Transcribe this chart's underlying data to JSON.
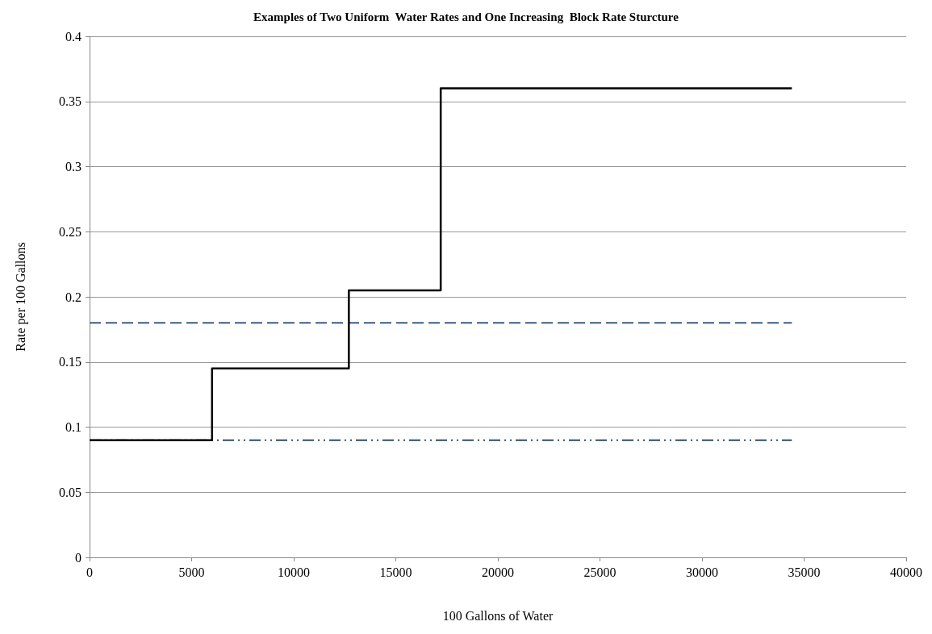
{
  "chart_data": {
    "type": "line",
    "title": "Examples of Two Uniform  Water Rates and One Increasing  Block Rate Sturcture",
    "xlabel": "100 Gallons of Water",
    "ylabel": "Rate per 100 Gallons",
    "xlim": [
      0,
      40000
    ],
    "xticks": [
      0,
      5000,
      10000,
      15000,
      20000,
      25000,
      30000,
      35000,
      40000
    ],
    "ylim": [
      0,
      0.4
    ],
    "yticks": [
      0,
      0.05,
      0.1,
      0.15,
      0.2,
      0.25,
      0.3,
      0.35,
      0.4
    ],
    "grid": "y",
    "marker": "none",
    "series": [
      {
        "color": "#3b5b8a",
        "line_style": "dashed",
        "x": [
          0,
          34400
        ],
        "values": [
          0.18,
          0.18
        ]
      },
      {
        "color": "#2f4b63",
        "line_style": "dotted",
        "x": [
          0,
          34400
        ],
        "values": [
          0.09,
          0.09
        ]
      },
      {
        "type": "step",
        "color": "#000000",
        "line_style": "solid",
        "x": [
          0,
          6000,
          12700,
          17200,
          34400
        ],
        "values": [
          0.09,
          0.145,
          0.205,
          0.36,
          0.36
        ]
      }
    ]
  }
}
